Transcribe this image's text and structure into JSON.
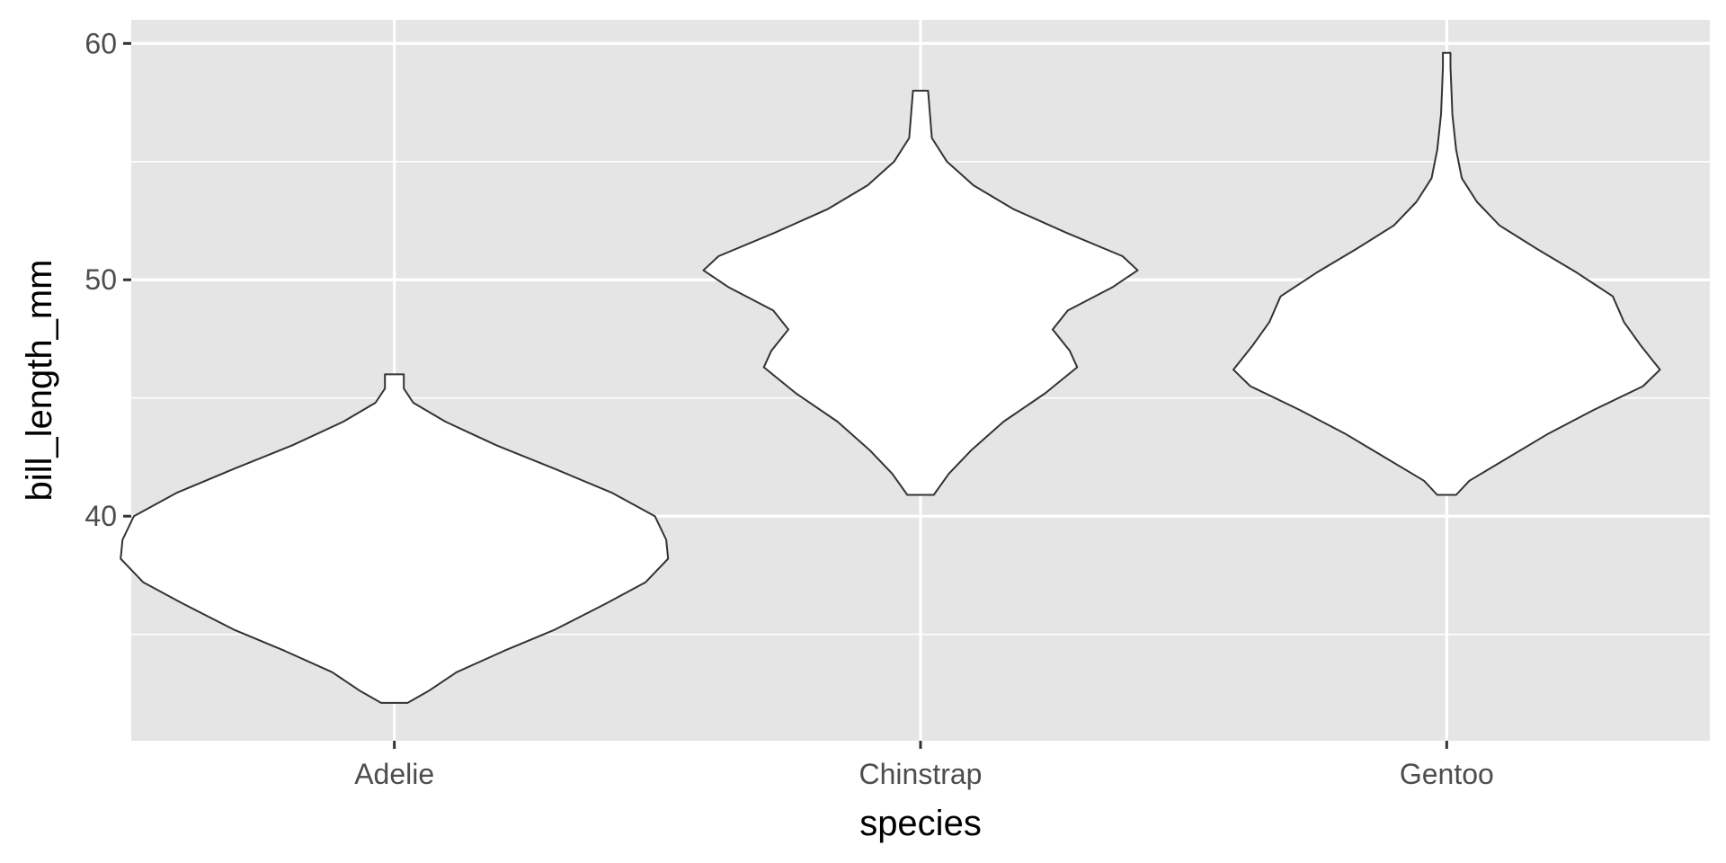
{
  "chart_data": {
    "type": "violin",
    "xlabel": "species",
    "ylabel": "bill_length_mm",
    "ylim": [
      30.5,
      61
    ],
    "y_ticks": [
      40,
      50,
      60
    ],
    "y_minor_ticks": [
      35,
      45,
      55
    ],
    "grid": true,
    "legend": "none",
    "colors": {
      "panel": "#e5e5e5",
      "grid": "#ffffff",
      "violin_fill": "#ffffff",
      "violin_outline": "#333333",
      "tick": "#333333"
    },
    "categories": [
      "Adelie",
      "Chinstrap",
      "Gentoo"
    ],
    "violins": [
      {
        "category": "Adelie",
        "min": 32.1,
        "max": 46.0,
        "half_width_profile": [
          [
            32.1,
            0.07
          ],
          [
            32.6,
            0.18
          ],
          [
            33.4,
            0.33
          ],
          [
            34.3,
            0.58
          ],
          [
            35.2,
            0.85
          ],
          [
            36.3,
            1.12
          ],
          [
            37.2,
            1.33
          ],
          [
            38.2,
            1.45
          ],
          [
            39.0,
            1.44
          ],
          [
            40.0,
            1.38
          ],
          [
            41.0,
            1.15
          ],
          [
            42.0,
            0.85
          ],
          [
            43.0,
            0.54
          ],
          [
            44.0,
            0.27
          ],
          [
            44.8,
            0.1
          ],
          [
            45.4,
            0.05
          ],
          [
            46.0,
            0.05
          ]
        ]
      },
      {
        "category": "Chinstrap",
        "min": 40.9,
        "max": 58.0,
        "half_width_profile": [
          [
            40.9,
            0.07
          ],
          [
            41.8,
            0.15
          ],
          [
            42.8,
            0.27
          ],
          [
            44.0,
            0.44
          ],
          [
            45.2,
            0.66
          ],
          [
            46.3,
            0.83
          ],
          [
            47.0,
            0.79
          ],
          [
            47.9,
            0.7
          ],
          [
            48.7,
            0.78
          ],
          [
            49.7,
            1.02
          ],
          [
            50.4,
            1.15
          ],
          [
            51.0,
            1.07
          ],
          [
            52.0,
            0.77
          ],
          [
            53.0,
            0.49
          ],
          [
            54.0,
            0.28
          ],
          [
            55.0,
            0.14
          ],
          [
            56.0,
            0.06
          ],
          [
            57.0,
            0.05
          ],
          [
            58.0,
            0.04
          ]
        ]
      },
      {
        "category": "Gentoo",
        "min": 40.9,
        "max": 59.6,
        "half_width_profile": [
          [
            40.9,
            0.05
          ],
          [
            41.5,
            0.12
          ],
          [
            42.5,
            0.33
          ],
          [
            43.5,
            0.54
          ],
          [
            44.5,
            0.78
          ],
          [
            45.5,
            1.04
          ],
          [
            46.2,
            1.13
          ],
          [
            47.2,
            1.03
          ],
          [
            48.2,
            0.94
          ],
          [
            49.3,
            0.88
          ],
          [
            50.3,
            0.69
          ],
          [
            51.3,
            0.48
          ],
          [
            52.3,
            0.28
          ],
          [
            53.3,
            0.16
          ],
          [
            54.3,
            0.08
          ],
          [
            55.5,
            0.05
          ],
          [
            57.0,
            0.03
          ],
          [
            58.0,
            0.025
          ],
          [
            59.0,
            0.02
          ],
          [
            59.6,
            0.02
          ]
        ]
      }
    ]
  }
}
